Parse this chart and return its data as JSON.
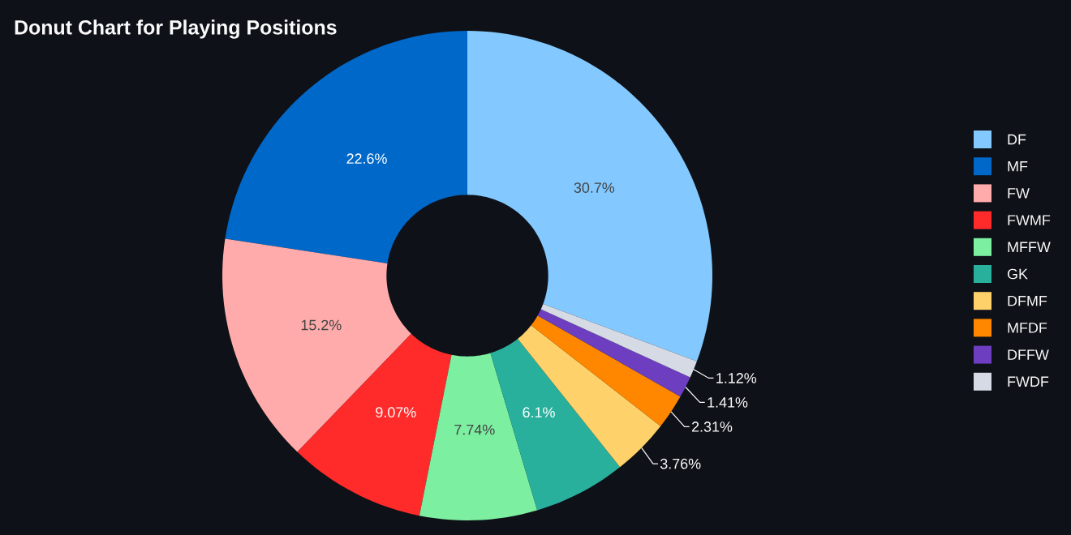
{
  "chart_data": {
    "type": "donut",
    "title": "Donut Chart for Playing Positions",
    "categories": [
      "DF",
      "MF",
      "FW",
      "FWMF",
      "MFFW",
      "GK",
      "DFMF",
      "MFDF",
      "DFFW",
      "FWDF"
    ],
    "values": [
      30.7,
      22.6,
      15.2,
      9.07,
      7.74,
      6.1,
      3.76,
      2.31,
      1.41,
      1.12
    ],
    "value_labels": [
      "30.7%",
      "22.6%",
      "15.2%",
      "9.07%",
      "7.74%",
      "6.1%",
      "3.76%",
      "2.31%",
      "1.41%",
      "1.12%"
    ],
    "colors": [
      "#83c9ff",
      "#0068c9",
      "#ffabab",
      "#ff2b2b",
      "#7defa1",
      "#29b09d",
      "#ffd16a",
      "#ff8700",
      "#6d3fc0",
      "#d5dae5"
    ],
    "legend": "right"
  }
}
